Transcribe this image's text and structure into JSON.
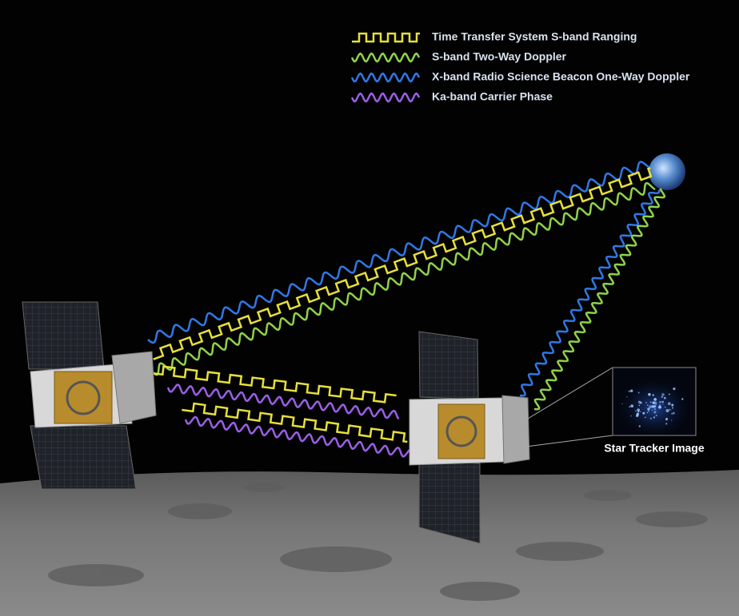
{
  "legend": [
    {
      "label": "Time Transfer System S-band Ranging",
      "color": "#e6df3c"
    },
    {
      "label": "S-band Two-Way Doppler",
      "color": "#8fd24a"
    },
    {
      "label": "X-band Radio Science Beacon One-Way Doppler",
      "color": "#2f78e6"
    },
    {
      "label": "Ka-band Carrier Phase",
      "color": "#9a5fe6"
    }
  ],
  "star_tracker_label": "Star Tracker Image"
}
